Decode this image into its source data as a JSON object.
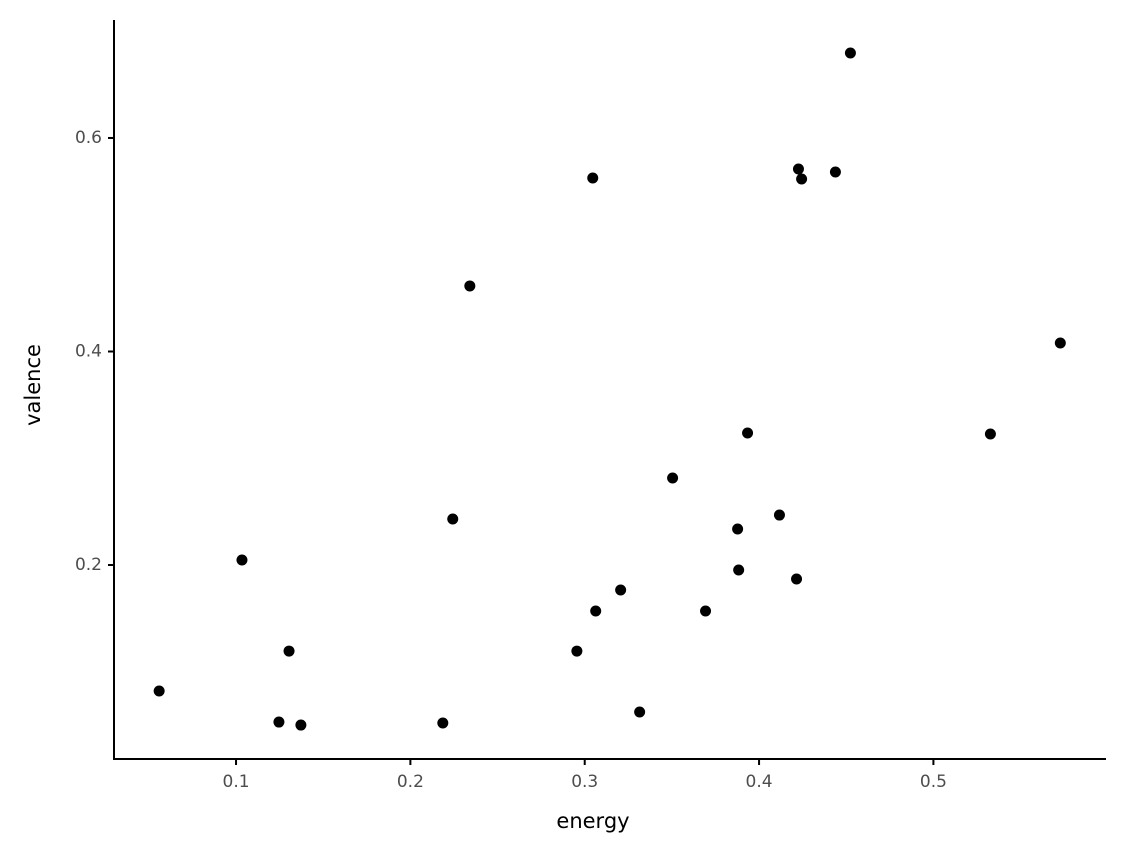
{
  "chart_data": {
    "type": "scatter",
    "xlabel": "energy",
    "ylabel": "valence",
    "color": "#000000",
    "x": [
      0.0559,
      0.1034,
      0.1246,
      0.1304,
      0.1372,
      0.2186,
      0.2243,
      0.2341,
      0.2955,
      0.3046,
      0.3063,
      0.3206,
      0.3315,
      0.3504,
      0.3693,
      0.3877,
      0.3883,
      0.3934,
      0.4117,
      0.4215,
      0.4226,
      0.4244,
      0.4438,
      0.4524,
      0.5327,
      0.5728
    ],
    "values": [
      0.082,
      0.2047,
      0.0529,
      0.1194,
      0.0501,
      0.052,
      0.2431,
      0.4614,
      0.1194,
      0.5625,
      0.1569,
      0.1766,
      0.0623,
      0.2815,
      0.1569,
      0.2337,
      0.1953,
      0.3237,
      0.2468,
      0.1869,
      0.5709,
      0.5616,
      0.5681,
      0.6796,
      0.3227,
      0.408
    ],
    "xlim": [
      0.03,
      0.599
    ],
    "ylim": [
      0.0183,
      0.7105
    ],
    "xticks": [
      0.1,
      0.2,
      0.3,
      0.4,
      0.5
    ],
    "yticks": [
      0.2,
      0.4,
      0.6
    ]
  }
}
